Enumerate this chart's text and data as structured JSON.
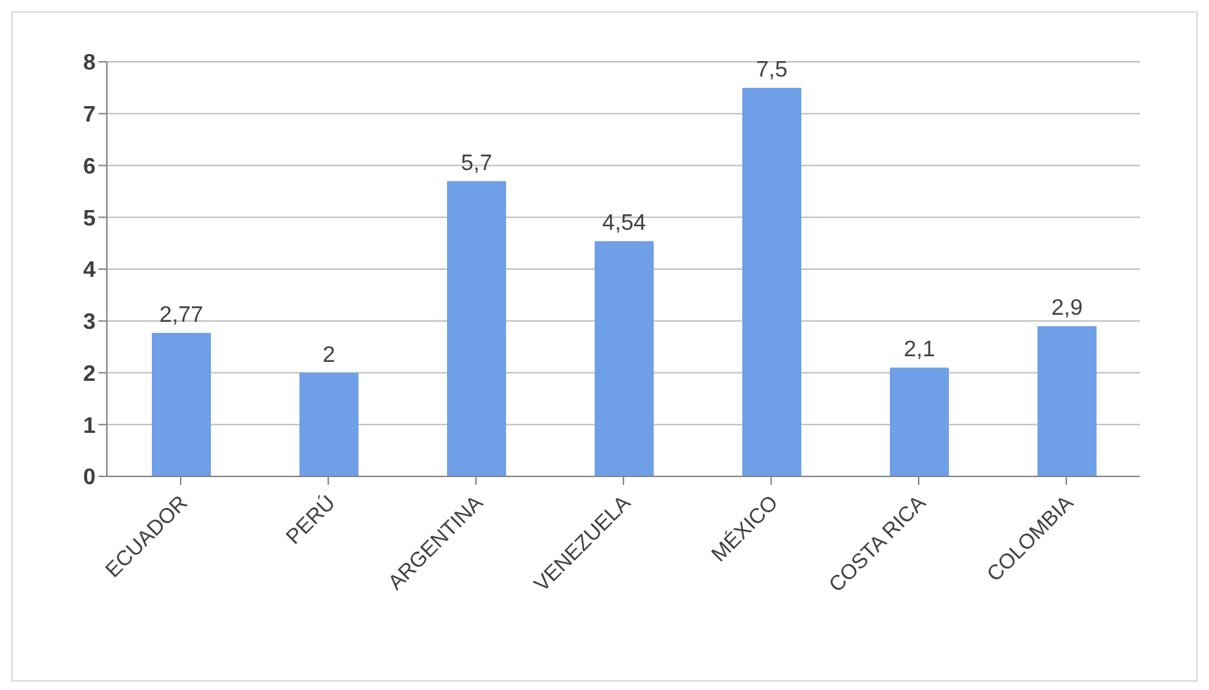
{
  "chart_data": {
    "type": "bar",
    "categories": [
      "ECUADOR",
      "PERÚ",
      "ARGENTINA",
      "VENEZUELA",
      "MÉXICO",
      "COSTA RICA",
      "COLOMBIA"
    ],
    "values": [
      2.77,
      2,
      5.7,
      4.54,
      7.5,
      2.1,
      2.9
    ],
    "value_labels": [
      "2,77",
      "2",
      "5,7",
      "4,54",
      "7,5",
      "2,1",
      "2,9"
    ],
    "color": "#6f9fe6",
    "ylim": [
      0,
      8
    ],
    "yticks": [
      0,
      1,
      2,
      3,
      4,
      5,
      6,
      7,
      8
    ],
    "grid": "y"
  }
}
